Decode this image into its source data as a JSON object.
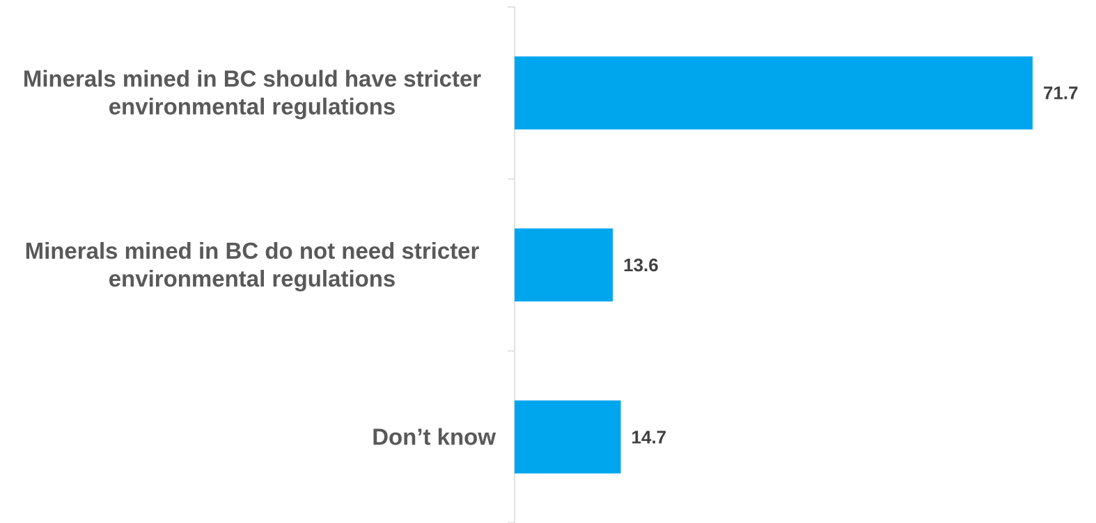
{
  "chart_data": {
    "type": "bar",
    "orientation": "horizontal",
    "categories": [
      [
        "Minerals mined in BC should have stricter",
        "environmental regulations"
      ],
      [
        "Minerals mined in BC do not need stricter",
        "environmental regulations"
      ],
      [
        "Don’t know"
      ]
    ],
    "values": [
      71.7,
      13.6,
      14.7
    ],
    "value_labels": [
      "71.7",
      "13.6",
      "14.7"
    ],
    "title": "",
    "xlabel": "",
    "ylabel": "",
    "xlim": [
      0,
      72
    ],
    "grid": false,
    "legend": "none",
    "bar_color": "#00a6ed"
  }
}
